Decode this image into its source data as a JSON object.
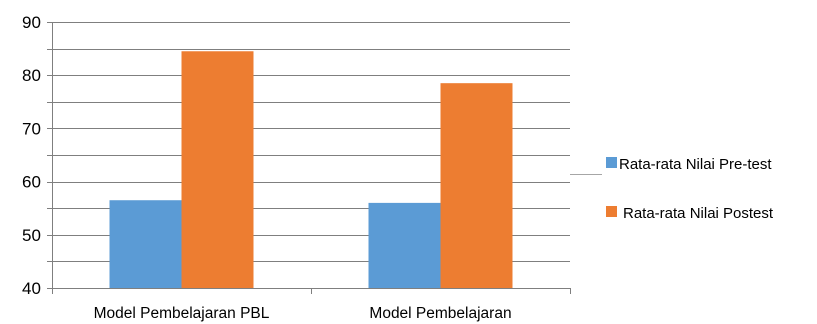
{
  "chart_data": {
    "type": "bar",
    "categories": [
      "Model Pembelajaran PBL",
      "Model Pembelajaran"
    ],
    "series": [
      {
        "name": "Rata-rata Nilai Pre-test",
        "values": [
          56.5,
          56
        ],
        "color": "#5b9bd5"
      },
      {
        "name": "Rata-rata Nilai Postest",
        "values": [
          84.5,
          78.5
        ],
        "color": "#ed7d31"
      }
    ],
    "ylim": [
      40,
      90
    ],
    "yticks": [
      40,
      50,
      60,
      70,
      80,
      90
    ],
    "title": "",
    "xlabel": "",
    "ylabel": "",
    "grid": true,
    "legend_position": "right"
  }
}
